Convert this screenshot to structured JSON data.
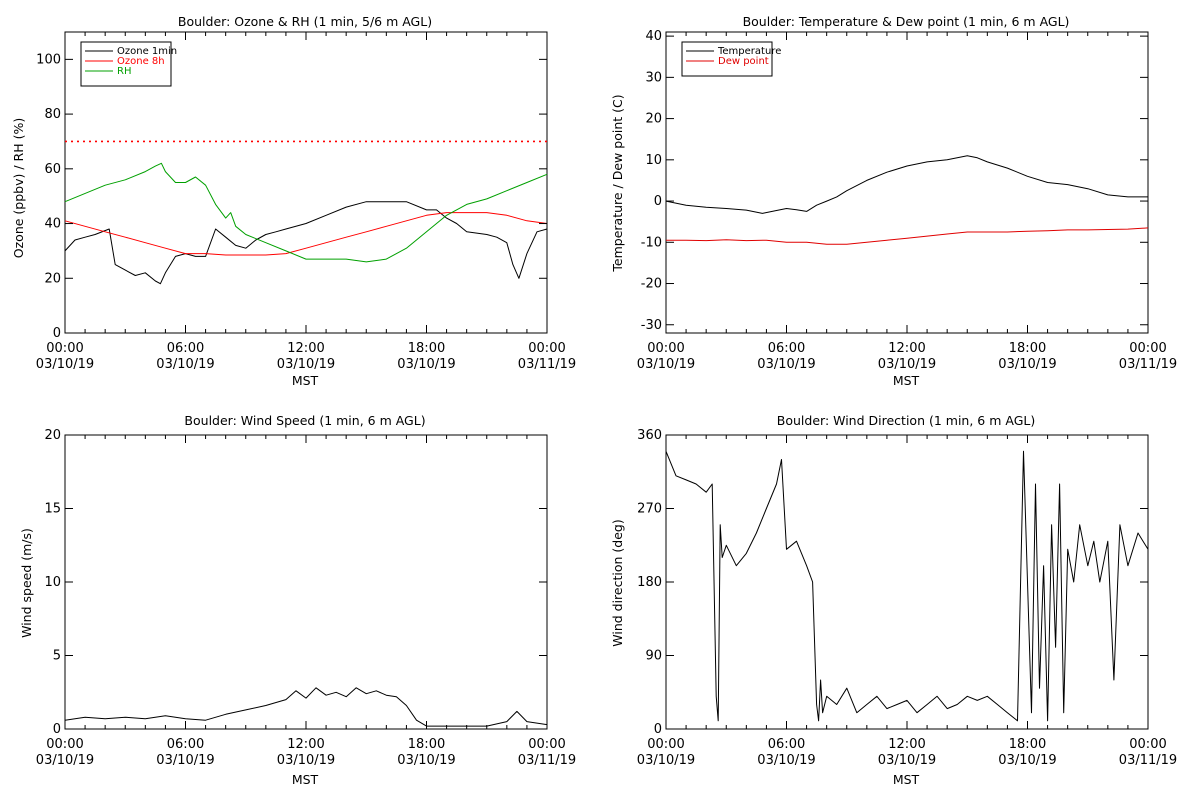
{
  "chart_data": [
    {
      "type": "line",
      "title": "Boulder: Ozone & RH (1 min, 5/6 m AGL)",
      "xlabel": "MST",
      "ylabel": "Ozone (ppbv) / RH (%)",
      "x_tick_labels": [
        [
          "00:00",
          "03/10/19"
        ],
        [
          "06:00",
          "03/10/19"
        ],
        [
          "12:00",
          "03/10/19"
        ],
        [
          "18:00",
          "03/10/19"
        ],
        [
          "00:00",
          "03/11/19"
        ]
      ],
      "x_unit": "hours from 00:00 03/10/19",
      "xlim": [
        0,
        24
      ],
      "ylim": [
        0,
        110
      ],
      "yticks": [
        0,
        20,
        40,
        60,
        80,
        100
      ],
      "grid": false,
      "legend": "top-left",
      "reference_line": {
        "y": 70,
        "color": "#ff0000",
        "style": "dotted"
      },
      "series": [
        {
          "name": "Ozone 1min",
          "color": "#000000",
          "x": [
            0,
            0.5,
            1,
            1.5,
            2.2,
            2.5,
            3,
            3.5,
            4,
            4.5,
            4.75,
            5,
            5.5,
            6,
            6.5,
            7,
            7.5,
            8,
            8.5,
            9,
            9.5,
            10,
            10.5,
            11,
            12,
            13,
            14,
            15,
            16,
            17,
            18,
            18.5,
            19,
            19.5,
            20,
            21,
            21.5,
            22,
            22.3,
            22.6,
            23,
            23.5,
            24
          ],
          "y": [
            30,
            34,
            35,
            36,
            38,
            25,
            23,
            21,
            22,
            19,
            18,
            22,
            28,
            29,
            28,
            28,
            38,
            35,
            32,
            31,
            34,
            36,
            37,
            38,
            40,
            43,
            46,
            48,
            48,
            48,
            45,
            45,
            42,
            40,
            37,
            36,
            35,
            33,
            25,
            20,
            29,
            37,
            38
          ]
        },
        {
          "name": "Ozone 8h",
          "color": "#ff0000",
          "x": [
            0,
            1,
            2,
            3,
            4,
            5,
            6,
            7,
            8,
            9,
            10,
            11,
            12,
            13,
            14,
            15,
            16,
            17,
            18,
            19,
            20,
            21,
            22,
            23,
            24
          ],
          "y": [
            41,
            39,
            37,
            35,
            33,
            31,
            29,
            29,
            28.5,
            28.5,
            28.5,
            29,
            31,
            33,
            35,
            37,
            39,
            41,
            43,
            44,
            44,
            44,
            43,
            41,
            40
          ]
        },
        {
          "name": "RH",
          "color": "#00a000",
          "x": [
            0,
            1,
            2,
            3,
            4,
            4.5,
            4.8,
            5,
            5.5,
            6,
            6.5,
            7,
            7.5,
            8,
            8.25,
            8.5,
            9,
            10,
            11,
            12,
            13,
            14,
            15,
            16,
            17,
            18,
            19,
            20,
            21,
            22,
            23,
            24
          ],
          "y": [
            48,
            51,
            54,
            56,
            59,
            61,
            62,
            59,
            55,
            55,
            57,
            54,
            47,
            42,
            44,
            39,
            36,
            33,
            30,
            27,
            27,
            27,
            26,
            27,
            31,
            37,
            43,
            47,
            49,
            52,
            55,
            58
          ]
        }
      ]
    },
    {
      "type": "line",
      "title": "Boulder: Temperature & Dew point (1 min, 6 m AGL)",
      "xlabel": "MST",
      "ylabel": "Temperature / Dew point (C)",
      "x_tick_labels": [
        [
          "00:00",
          "03/10/19"
        ],
        [
          "06:00",
          "03/10/19"
        ],
        [
          "12:00",
          "03/10/19"
        ],
        [
          "18:00",
          "03/10/19"
        ],
        [
          "00:00",
          "03/11/19"
        ]
      ],
      "x_unit": "hours from 00:00 03/10/19",
      "xlim": [
        0,
        24
      ],
      "ylim": [
        -32,
        41
      ],
      "yticks": [
        -30,
        -20,
        -10,
        0,
        10,
        20,
        30,
        40
      ],
      "grid": false,
      "legend": "top-left",
      "series": [
        {
          "name": "Temperature",
          "color": "#000000",
          "x": [
            0,
            1,
            2,
            3,
            4,
            4.8,
            5.5,
            6,
            6.5,
            7,
            7.5,
            8,
            8.5,
            9,
            10,
            11,
            12,
            13,
            14,
            15,
            15.5,
            16,
            17,
            18,
            19,
            20,
            21,
            22,
            23,
            24
          ],
          "y": [
            0,
            -1,
            -1.5,
            -1.8,
            -2.2,
            -3,
            -2.3,
            -1.8,
            -2.1,
            -2.5,
            -1,
            0,
            1,
            2.5,
            5,
            7,
            8.5,
            9.5,
            10,
            11,
            10.5,
            9.5,
            8,
            6,
            4.5,
            4,
            3,
            1.5,
            1,
            1
          ]
        },
        {
          "name": "Dew point",
          "color": "#e00000",
          "x": [
            0,
            1,
            2,
            3,
            4,
            5,
            6,
            7,
            8,
            9,
            10,
            11,
            12,
            13,
            14,
            15,
            16,
            17,
            18,
            19,
            20,
            21,
            22,
            23,
            24
          ],
          "y": [
            -9.5,
            -9.5,
            -9.6,
            -9.4,
            -9.6,
            -9.5,
            -10,
            -10,
            -10.5,
            -10.5,
            -10,
            -9.5,
            -9,
            -8.5,
            -8,
            -7.5,
            -7.5,
            -7.5,
            -7.3,
            -7.2,
            -7,
            -7,
            -6.9,
            -6.8,
            -6.5
          ]
        }
      ]
    },
    {
      "type": "line",
      "title": "Boulder: Wind Speed (1 min, 6 m AGL)",
      "xlabel": "MST",
      "ylabel": "Wind speed (m/s)",
      "x_tick_labels": [
        [
          "00:00",
          "03/10/19"
        ],
        [
          "06:00",
          "03/10/19"
        ],
        [
          "12:00",
          "03/10/19"
        ],
        [
          "18:00",
          "03/10/19"
        ],
        [
          "00:00",
          "03/11/19"
        ]
      ],
      "x_unit": "hours from 00:00 03/10/19",
      "xlim": [
        0,
        24
      ],
      "ylim": [
        0,
        20
      ],
      "yticks": [
        0,
        5,
        10,
        15,
        20
      ],
      "grid": false,
      "series": [
        {
          "name": "",
          "color": "#000000",
          "x": [
            0,
            1,
            2,
            3,
            4,
            5,
            6,
            7,
            8,
            9,
            10,
            11,
            11.5,
            12,
            12.5,
            13,
            13.5,
            14,
            14.5,
            15,
            15.5,
            16,
            16.5,
            17,
            17.5,
            18,
            19,
            20,
            21,
            22,
            22.5,
            23,
            24
          ],
          "y": [
            0.6,
            0.8,
            0.7,
            0.8,
            0.7,
            0.9,
            0.7,
            0.6,
            1,
            1.3,
            1.6,
            2,
            2.6,
            2.1,
            2.8,
            2.3,
            2.5,
            2.2,
            2.8,
            2.4,
            2.6,
            2.3,
            2.2,
            1.6,
            0.6,
            0.2,
            0.2,
            0.2,
            0.2,
            0.5,
            1.2,
            0.5,
            0.3
          ]
        }
      ]
    },
    {
      "type": "line",
      "title": "Boulder: Wind Direction (1 min, 6 m AGL)",
      "xlabel": "MST",
      "ylabel": "Wind direction (deg)",
      "x_tick_labels": [
        [
          "00:00",
          "03/10/19"
        ],
        [
          "06:00",
          "03/10/19"
        ],
        [
          "12:00",
          "03/10/19"
        ],
        [
          "18:00",
          "03/10/19"
        ],
        [
          "00:00",
          "03/11/19"
        ]
      ],
      "x_unit": "hours from 00:00 03/10/19",
      "xlim": [
        0,
        24
      ],
      "ylim": [
        0,
        360
      ],
      "yticks": [
        0,
        90,
        180,
        270,
        360
      ],
      "grid": false,
      "series": [
        {
          "name": "",
          "color": "#000000",
          "x": [
            0,
            0.5,
            1,
            1.5,
            2,
            2.3,
            2.5,
            2.6,
            2.7,
            2.8,
            3,
            3.5,
            4,
            4.5,
            5,
            5.5,
            5.75,
            6,
            6.5,
            7,
            7.3,
            7.5,
            7.6,
            7.7,
            7.8,
            8,
            8.5,
            9,
            9.5,
            10,
            10.5,
            11,
            11.5,
            12,
            12.5,
            13,
            13.5,
            14,
            14.5,
            15,
            15.5,
            16,
            16.5,
            17,
            17.5,
            17.8,
            18,
            18.2,
            18.4,
            18.6,
            18.8,
            19,
            19.2,
            19.4,
            19.6,
            19.8,
            20,
            20.3,
            20.6,
            21,
            21.3,
            21.6,
            22,
            22.3,
            22.6,
            23,
            23.5,
            24
          ],
          "y": [
            340,
            310,
            305,
            300,
            290,
            300,
            40,
            10,
            250,
            210,
            225,
            200,
            215,
            240,
            270,
            300,
            330,
            220,
            230,
            200,
            180,
            30,
            10,
            60,
            20,
            40,
            30,
            50,
            20,
            30,
            40,
            25,
            30,
            35,
            20,
            30,
            40,
            25,
            30,
            40,
            35,
            40,
            30,
            20,
            10,
            340,
            180,
            20,
            300,
            50,
            200,
            10,
            250,
            100,
            300,
            20,
            220,
            180,
            250,
            200,
            230,
            180,
            230,
            60,
            250,
            200,
            240,
            220
          ]
        }
      ]
    }
  ]
}
